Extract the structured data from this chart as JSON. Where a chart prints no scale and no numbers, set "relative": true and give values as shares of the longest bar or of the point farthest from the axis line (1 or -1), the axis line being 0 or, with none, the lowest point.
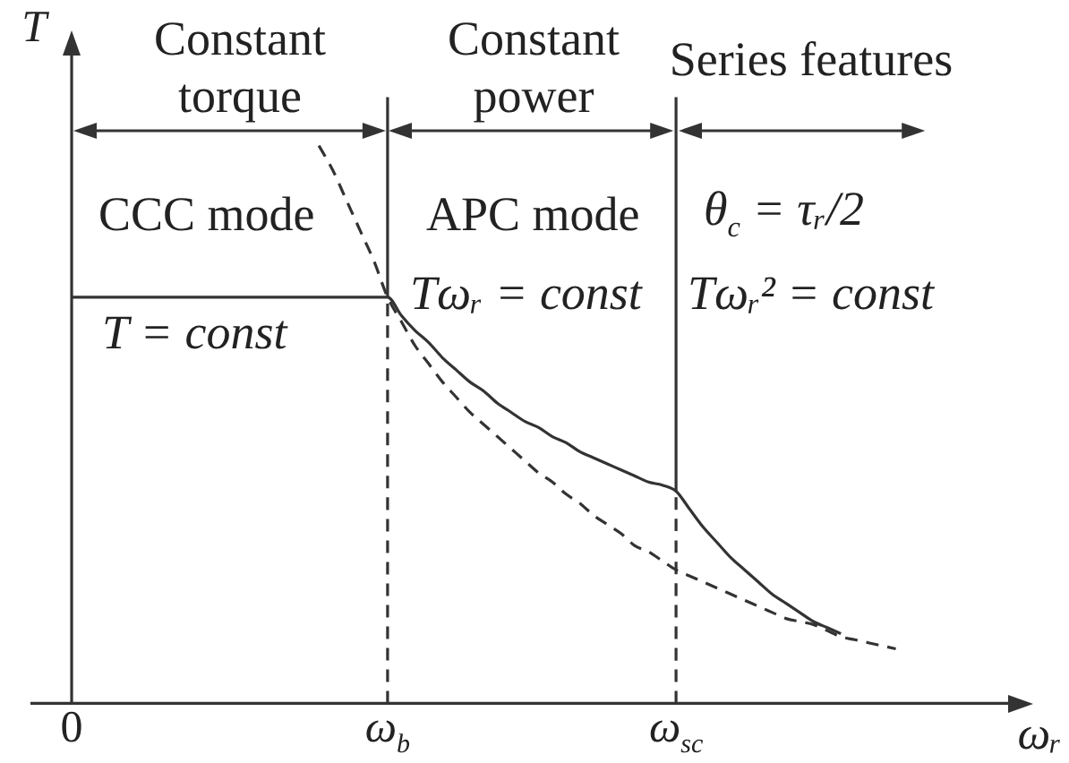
{
  "chart_data": {
    "type": "line",
    "relative": true,
    "xlabel": "ωᵣ",
    "ylabel": "T",
    "categories": [
      null,
      null,
      null,
      "0",
      null,
      null,
      null,
      null,
      null,
      null,
      null,
      null,
      null,
      null,
      null,
      null,
      null,
      null,
      null,
      null,
      null,
      null,
      null,
      null,
      null,
      null,
      "ω$_{b}$",
      null,
      null,
      null,
      null,
      null,
      null,
      null,
      null,
      null,
      null,
      null,
      null,
      null,
      null,
      null,
      null,
      null,
      null,
      null,
      null,
      "ω$_{sc}$",
      null,
      null,
      null,
      null,
      null,
      null,
      null,
      null,
      null,
      null,
      null,
      null,
      null,
      null,
      null,
      null,
      null,
      null,
      null,
      null,
      null,
      null,
      null,
      null,
      null,
      null
    ],
    "series": [
      {
        "color": "#333333",
        "line_style": "solid",
        "values": [
          null,
          null,
          null,
          0.67,
          0.67,
          0.67,
          0.67,
          0.67,
          0.67,
          0.67,
          0.67,
          0.67,
          0.67,
          0.67,
          0.67,
          0.67,
          0.67,
          0.67,
          0.67,
          0.67,
          0.67,
          0.67,
          0.67,
          0.67,
          0.67,
          0.67,
          0.67,
          0.64,
          0.615,
          0.595,
          0.57,
          0.55,
          0.53,
          0.515,
          0.495,
          0.48,
          0.465,
          0.455,
          0.44,
          0.43,
          0.415,
          0.405,
          0.395,
          0.385,
          0.375,
          0.365,
          0.36,
          0.35,
          0.32,
          0.29,
          0.265,
          0.24,
          0.22,
          0.2,
          0.18,
          0.165,
          0.15,
          0.135,
          0.125,
          0.115,
          null,
          null,
          null,
          null,
          null,
          null,
          null,
          null,
          null,
          null,
          null,
          null,
          null,
          null
        ]
      },
      {
        "color": "#333333",
        "line_style": "dashed",
        "values": [
          null,
          null,
          null,
          null,
          null,
          null,
          null,
          null,
          null,
          null,
          null,
          null,
          null,
          null,
          null,
          null,
          null,
          null,
          null,
          null,
          null,
          0.92,
          0.88,
          0.83,
          0.78,
          0.73,
          0.67,
          0.63,
          0.59,
          0.56,
          0.53,
          0.505,
          0.48,
          0.46,
          0.44,
          0.42,
          0.4,
          0.38,
          0.365,
          0.345,
          0.33,
          0.31,
          0.295,
          0.28,
          0.26,
          0.25,
          0.235,
          0.22,
          0.21,
          0.2,
          0.19,
          0.18,
          0.17,
          0.16,
          0.15,
          0.14,
          0.135,
          0.13,
          0.12,
          0.11,
          0.105,
          0.1,
          0.095,
          0.09,
          null,
          null,
          null,
          null,
          null,
          null,
          null,
          null,
          null,
          null
        ]
      },
      {
        "color": "#333333",
        "line_style": "solid",
        "x": [
          "ω$_{b}$",
          "ω$_{b}$"
        ],
        "values": [
          0.67,
          1
        ]
      },
      {
        "color": "#333333",
        "line_style": "solid",
        "x": [
          "ω$_{sc}$",
          "ω$_{sc}$"
        ],
        "values": [
          0.35,
          1
        ]
      },
      {
        "color": "#333333",
        "line_style": "dashed",
        "x": [
          "ω$_{b}$",
          "ω$_{b}$"
        ],
        "values": [
          0,
          0.67
        ]
      },
      {
        "color": "#333333",
        "line_style": "dashed",
        "x": [
          "ω$_{sc}$",
          "ω$_{sc}$"
        ],
        "values": [
          0,
          0.35
        ]
      }
    ],
    "annotations": [
      "Constant\ntorque",
      "Constant\npower",
      "Series features",
      "CCC mode",
      "APC mode",
      "θ$_{c}$ = τᵣ/2",
      "T = const",
      "Tωᵣ = const",
      "Tωᵣ² = const"
    ],
    "marker": "none",
    "legend": false
  }
}
